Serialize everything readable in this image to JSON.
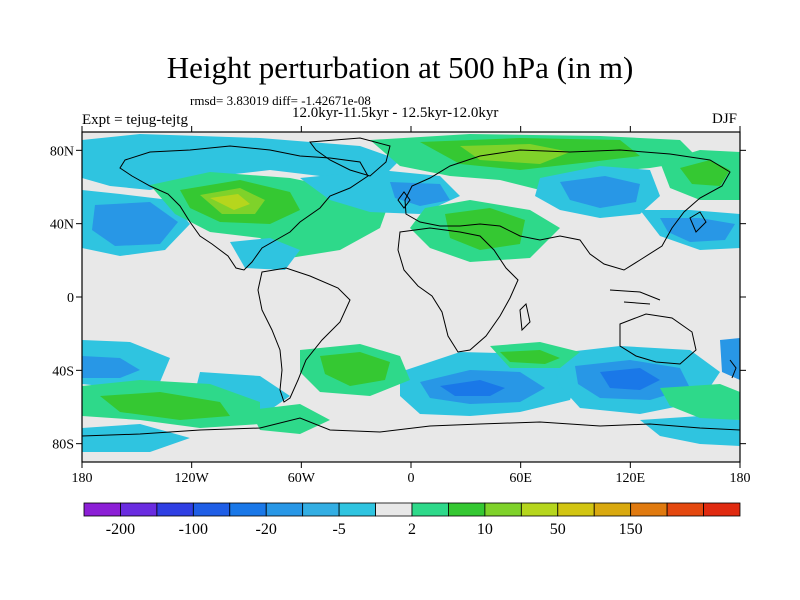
{
  "title": "Height perturbation at 500 hPa (in m)",
  "stats": "rmsd= 3.83019 diff= -1.42671e-08",
  "experiment": "Expt = tejug-tejtg",
  "period": "12.0kyr-11.5kyr - 12.5kyr-12.0kyr",
  "season": "DJF",
  "map": {
    "lon_range": [
      -180,
      180
    ],
    "lat_range": [
      -90,
      90
    ],
    "lat_ticks": [
      {
        "value": 80,
        "label": "80N"
      },
      {
        "value": 40,
        "label": "40N"
      },
      {
        "value": 0,
        "label": "0"
      },
      {
        "value": -40,
        "label": "40S"
      },
      {
        "value": -80,
        "label": "80S"
      }
    ],
    "lon_ticks": [
      {
        "value": -180,
        "label": "180"
      },
      {
        "value": -120,
        "label": "120W"
      },
      {
        "value": -60,
        "label": "60W"
      },
      {
        "value": 0,
        "label": "0"
      },
      {
        "value": 60,
        "label": "60E"
      },
      {
        "value": 120,
        "label": "120E"
      },
      {
        "value": 180,
        "label": "180"
      }
    ],
    "background_color": "#e8e8e8"
  },
  "colorbar": {
    "colors": [
      "#8c1fd6",
      "#6a2ce0",
      "#2f3fe3",
      "#1f5ee6",
      "#1a78e8",
      "#2897e6",
      "#33aee3",
      "#2fc4e0",
      "#e8e8e8",
      "#2ed98a",
      "#35c832",
      "#7fd22a",
      "#b6d61d",
      "#d2c512",
      "#d9a90f",
      "#e07a0f",
      "#e4480f",
      "#e02a10"
    ],
    "labels": [
      {
        "after_box": 1,
        "text": "-200"
      },
      {
        "after_box": 3,
        "text": "-100"
      },
      {
        "after_box": 5,
        "text": "-20"
      },
      {
        "after_box": 7,
        "text": "-5"
      },
      {
        "after_box": 9,
        "text": "2"
      },
      {
        "after_box": 11,
        "text": "10"
      },
      {
        "after_box": 13,
        "text": "50"
      },
      {
        "after_box": 15,
        "text": "150"
      }
    ]
  }
}
